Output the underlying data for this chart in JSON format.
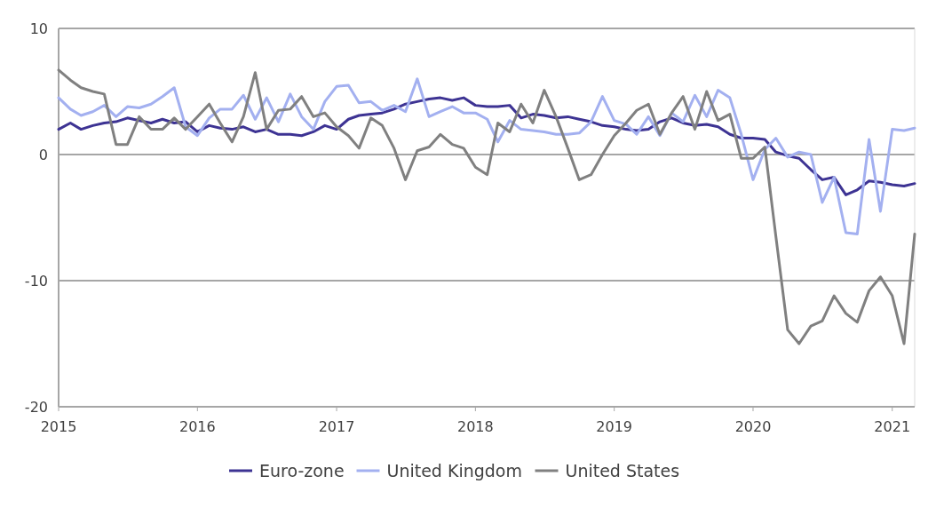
{
  "chart_data": {
    "type": "line",
    "x": [
      "2015-01",
      "2015-02",
      "2015-03",
      "2015-04",
      "2015-05",
      "2015-06",
      "2015-07",
      "2015-08",
      "2015-09",
      "2015-10",
      "2015-11",
      "2015-12",
      "2016-01",
      "2016-02",
      "2016-03",
      "2016-04",
      "2016-05",
      "2016-06",
      "2016-07",
      "2016-08",
      "2016-09",
      "2016-10",
      "2016-11",
      "2016-12",
      "2017-01",
      "2017-02",
      "2017-03",
      "2017-04",
      "2017-05",
      "2017-06",
      "2017-07",
      "2017-08",
      "2017-09",
      "2017-10",
      "2017-11",
      "2017-12",
      "2018-01",
      "2018-02",
      "2018-03",
      "2018-04",
      "2018-05",
      "2018-06",
      "2018-07",
      "2018-08",
      "2018-09",
      "2018-10",
      "2018-11",
      "2018-12",
      "2019-01",
      "2019-02",
      "2019-03",
      "2019-04",
      "2019-05",
      "2019-06",
      "2019-07",
      "2019-08",
      "2019-09",
      "2019-10",
      "2019-11",
      "2019-12",
      "2020-01",
      "2020-02",
      "2020-03",
      "2020-04",
      "2020-05",
      "2020-06",
      "2020-07",
      "2020-08",
      "2020-09",
      "2020-10",
      "2020-11",
      "2020-12",
      "2021-01",
      "2021-02",
      "2021-03"
    ],
    "series": [
      {
        "name": "Euro-zone",
        "color": "#3d3393",
        "values": [
          2.0,
          2.5,
          2.0,
          2.3,
          2.5,
          2.6,
          2.9,
          2.7,
          2.5,
          2.8,
          2.5,
          2.6,
          1.8,
          2.3,
          2.1,
          2.0,
          2.2,
          1.8,
          2.0,
          1.6,
          1.6,
          1.5,
          1.8,
          2.3,
          2.0,
          2.8,
          3.1,
          3.2,
          3.3,
          3.6,
          4.0,
          4.2,
          4.4,
          4.5,
          4.3,
          4.5,
          3.9,
          3.8,
          3.8,
          3.9,
          2.9,
          3.2,
          3.1,
          2.9,
          3.0,
          2.8,
          2.6,
          2.3,
          2.2,
          2.0,
          1.9,
          2.0,
          2.6,
          2.9,
          2.5,
          2.3,
          2.4,
          2.2,
          1.6,
          1.3,
          1.3,
          1.2,
          0.2,
          -0.1,
          -0.3,
          -1.2,
          -2.0,
          -1.8,
          -3.2,
          -2.8,
          -2.1,
          -2.2,
          -2.4,
          -2.5,
          -2.3
        ]
      },
      {
        "name": "United Kingdom",
        "color": "#a3b0f0",
        "values": [
          4.5,
          3.6,
          3.1,
          3.4,
          3.9,
          3.0,
          3.8,
          3.7,
          4.0,
          4.6,
          5.3,
          2.2,
          1.5,
          2.9,
          3.6,
          3.6,
          4.7,
          2.8,
          4.5,
          2.6,
          4.8,
          3.0,
          2.0,
          4.2,
          5.4,
          5.5,
          4.1,
          4.2,
          3.5,
          3.9,
          3.4,
          6.0,
          3.0,
          3.4,
          3.8,
          3.3,
          3.3,
          2.8,
          1.0,
          2.7,
          2.0,
          1.9,
          1.8,
          1.6,
          1.6,
          1.7,
          2.6,
          4.6,
          2.7,
          2.4,
          1.6,
          3.0,
          1.5,
          3.3,
          2.6,
          4.7,
          3.0,
          5.1,
          4.5,
          1.6,
          -2.0,
          0.4,
          1.3,
          -0.2,
          0.2,
          0.0,
          -3.8,
          -1.8,
          -6.2,
          -6.3,
          1.2,
          -4.5,
          2.0,
          1.9,
          2.1
        ]
      },
      {
        "name": "United States",
        "color": "#808080",
        "values": [
          6.7,
          5.9,
          5.3,
          5.0,
          4.8,
          0.8,
          0.8,
          3.0,
          2.0,
          2.0,
          2.9,
          2.0,
          3.0,
          4.0,
          2.5,
          1.0,
          3.0,
          6.5,
          2.0,
          3.5,
          3.6,
          4.6,
          3.0,
          3.3,
          2.2,
          1.5,
          0.5,
          2.9,
          2.3,
          0.5,
          -2.0,
          0.3,
          0.6,
          1.6,
          0.8,
          0.5,
          -1.0,
          -1.6,
          2.5,
          1.8,
          4.0,
          2.5,
          5.1,
          3.0,
          0.5,
          -2.0,
          -1.6,
          0.0,
          1.5,
          2.5,
          3.5,
          4.0,
          1.6,
          3.3,
          4.6,
          2.0,
          5.0,
          2.7,
          3.2,
          -0.3,
          -0.3,
          0.6,
          -6.5,
          -13.9,
          -15.0,
          -13.6,
          -13.2,
          -11.2,
          -12.6,
          -13.3,
          -10.8,
          -9.7,
          -11.2,
          -15.0,
          -6.3
        ]
      }
    ],
    "xlim": [
      "2015-01",
      "2021-03"
    ],
    "xticks": [
      "2015",
      "2016",
      "2017",
      "2018",
      "2019",
      "2020",
      "2021"
    ],
    "ylim": [
      -20,
      10
    ],
    "yticks": [
      -20,
      -10,
      0,
      10
    ],
    "grid": "y",
    "legend": "bottom",
    "marker": "none",
    "line_style": "solid"
  }
}
